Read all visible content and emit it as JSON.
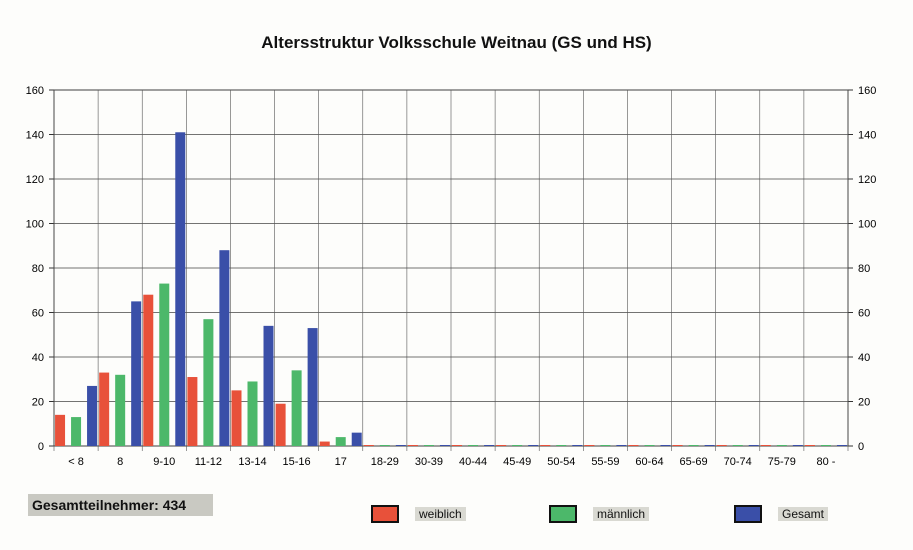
{
  "total_label": "Gesamtteilnehmer: 434",
  "legend": [
    {
      "label": "weiblich",
      "color": "#e8513a"
    },
    {
      "label": "männlich",
      "color": "#4cb86a"
    },
    {
      "label": "Gesamt",
      "color": "#3a4fa8"
    }
  ],
  "chart_data": {
    "type": "bar",
    "title": "Altersstruktur Volksschule Weitnau (GS und HS)",
    "xlabel": "",
    "ylabel": "",
    "ylim": [
      0,
      160
    ],
    "yticks": [
      0,
      20,
      40,
      60,
      80,
      100,
      120,
      140,
      160
    ],
    "grid": true,
    "secondary_y_axis": true,
    "legend_position": "bottom",
    "categories": [
      "< 8",
      "8",
      "9-10",
      "11-12",
      "13-14",
      "15-16",
      "17",
      "18-29",
      "30-39",
      "40-44",
      "45-49",
      "50-54",
      "55-59",
      "60-64",
      "65-69",
      "70-74",
      "75-79",
      "80 -"
    ],
    "series": [
      {
        "name": "weiblich",
        "color": "#e8513a",
        "values": [
          14,
          33,
          68,
          31,
          25,
          19,
          2,
          0,
          0,
          0,
          0,
          0,
          0,
          0,
          0,
          0,
          0,
          0
        ]
      },
      {
        "name": "männlich",
        "color": "#4cb86a",
        "values": [
          13,
          32,
          73,
          57,
          29,
          34,
          4,
          0,
          0,
          0,
          0,
          0,
          0,
          0,
          0,
          0,
          0,
          0
        ]
      },
      {
        "name": "Gesamt",
        "color": "#3a4fa8",
        "values": [
          27,
          65,
          141,
          88,
          54,
          53,
          6,
          0,
          0,
          0,
          0,
          0,
          0,
          0,
          0,
          0,
          0,
          0
        ]
      }
    ]
  }
}
